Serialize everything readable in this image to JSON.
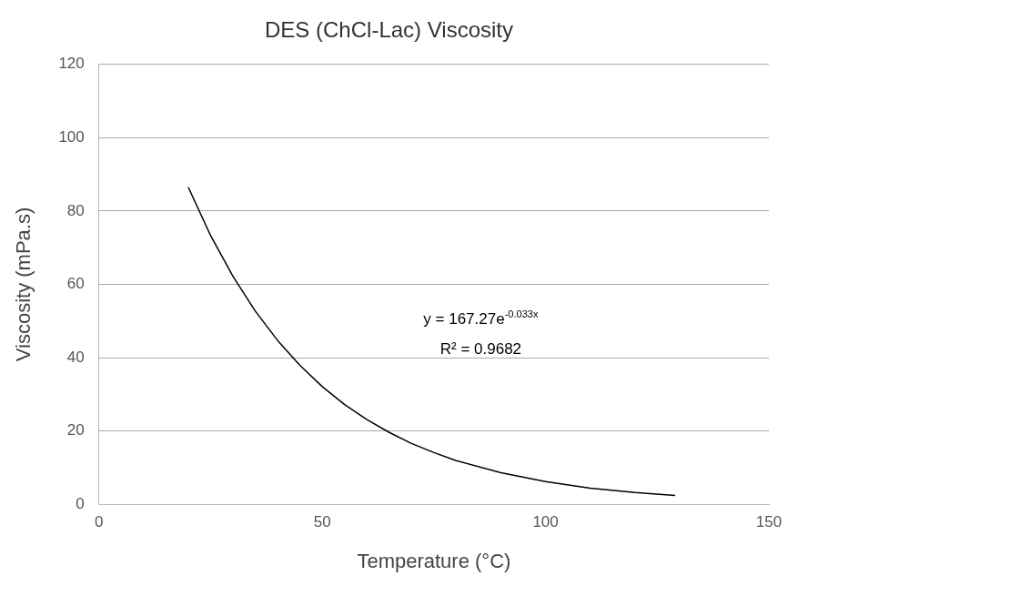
{
  "chart_data": {
    "type": "line",
    "title": "DES (ChCl-Lac) Viscosity",
    "xlabel": "Temperature (°C)",
    "ylabel": "Viscosity (mPa.s)",
    "x": [
      20,
      25,
      30,
      35,
      40,
      45,
      50,
      55,
      60,
      65,
      70,
      75,
      80,
      90,
      100,
      110,
      120,
      129
    ],
    "series": [
      {
        "color": "#000000",
        "values": [
          86.5,
          73.3,
          62.2,
          52.7,
          44.7,
          37.9,
          32.1,
          27.2,
          23.1,
          19.6,
          16.6,
          14.1,
          11.9,
          8.6,
          6.2,
          4.4,
          3.2,
          2.4
        ]
      }
    ],
    "xlim": [
      0,
      150
    ],
    "xticks": [
      0,
      50,
      100,
      150
    ],
    "ylim": [
      0,
      120
    ],
    "yticks": [
      0,
      20,
      40,
      60,
      80,
      100,
      120
    ],
    "grid": "y",
    "legend": false,
    "marker": "none",
    "line_style": "solid",
    "annotations": [
      "y = 167.27e$^{-0.033x}$",
      "R² = 0.9682"
    ]
  }
}
